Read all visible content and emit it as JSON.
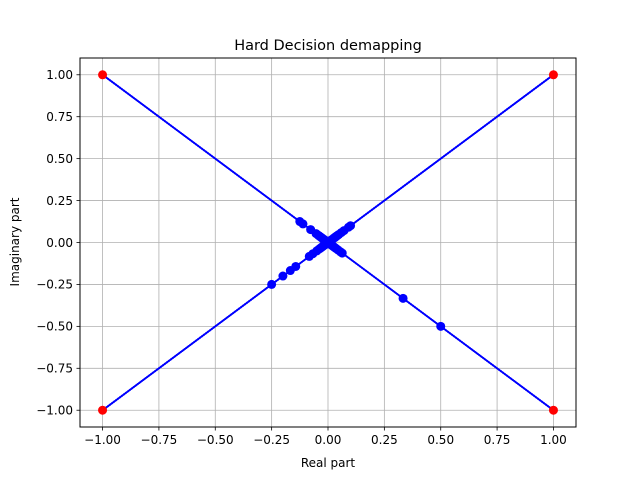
{
  "chart_data": {
    "type": "scatter",
    "title": "Hard Decision demapping",
    "xlabel": "Real part",
    "ylabel": "Imaginary part",
    "xlim": [
      -1.1,
      1.1
    ],
    "ylim": [
      -1.1,
      1.1
    ],
    "grid": true,
    "x_ticks": [
      -1.0,
      -0.75,
      -0.5,
      -0.25,
      0.0,
      0.25,
      0.5,
      0.75,
      1.0
    ],
    "y_ticks": [
      -1.0,
      -0.75,
      -0.5,
      -0.25,
      0.0,
      0.25,
      0.5,
      0.75,
      1.0
    ],
    "x_tick_labels": [
      "−1.00",
      "−0.75",
      "−0.50",
      "−0.25",
      "0.00",
      "0.25",
      "0.50",
      "0.75",
      "1.00"
    ],
    "y_tick_labels": [
      "−1.00",
      "−0.75",
      "−0.50",
      "−0.25",
      "0.00",
      "0.25",
      "0.50",
      "0.75",
      "1.00"
    ],
    "series": [
      {
        "color": "#0000ff",
        "marker": "circle",
        "lines_to_nearest_corner": true,
        "points": [
          [
            0.5,
            -0.5
          ],
          [
            0.333,
            -0.333
          ],
          [
            -0.25,
            -0.25
          ],
          [
            -0.2,
            -0.2
          ],
          [
            -0.167,
            -0.167
          ],
          [
            -0.143,
            -0.143
          ],
          [
            -0.125,
            0.125
          ],
          [
            -0.111,
            0.111
          ],
          [
            0.1,
            0.1
          ],
          [
            0.091,
            0.091
          ],
          [
            -0.083,
            -0.083
          ],
          [
            -0.077,
            0.077
          ],
          [
            0.071,
            0.071
          ],
          [
            -0.067,
            -0.067
          ],
          [
            0.063,
            -0.063
          ],
          [
            0.059,
            0.059
          ],
          [
            0.056,
            -0.056
          ],
          [
            -0.053,
            0.053
          ],
          [
            -0.05,
            -0.05
          ],
          [
            0.048,
            0.048
          ],
          [
            0.045,
            -0.045
          ],
          [
            -0.043,
            0.043
          ],
          [
            0.042,
            0.042
          ],
          [
            -0.04,
            -0.04
          ],
          [
            0.038,
            0.038
          ],
          [
            -0.037,
            0.037
          ],
          [
            0.036,
            -0.036
          ],
          [
            0.034,
            0.034
          ],
          [
            -0.033,
            -0.033
          ],
          [
            0.032,
            0.032
          ],
          [
            -0.031,
            0.031
          ],
          [
            0.03,
            -0.03
          ],
          [
            0.029,
            0.029
          ],
          [
            -0.028,
            -0.028
          ],
          [
            0.027,
            0.027
          ],
          [
            -0.026,
            0.026
          ],
          [
            0.025,
            -0.025
          ],
          [
            -0.024,
            -0.024
          ],
          [
            0.023,
            0.023
          ],
          [
            -0.022,
            0.022
          ],
          [
            0.021,
            -0.021
          ],
          [
            -0.02,
            -0.02
          ],
          [
            0.019,
            0.019
          ],
          [
            -0.018,
            0.018
          ],
          [
            0.017,
            -0.017
          ],
          [
            -0.016,
            -0.016
          ],
          [
            0.015,
            0.015
          ],
          [
            -0.014,
            0.014
          ],
          [
            0.013,
            -0.013
          ],
          [
            -0.012,
            -0.012
          ],
          [
            0.011,
            0.011
          ],
          [
            -0.01,
            0.01
          ],
          [
            0.009,
            -0.009
          ],
          [
            -0.008,
            -0.008
          ],
          [
            0.007,
            0.007
          ],
          [
            -0.006,
            0.006
          ],
          [
            0.005,
            -0.005
          ],
          [
            -0.004,
            -0.004
          ],
          [
            0.003,
            0.003
          ],
          [
            -0.002,
            0.002
          ]
        ]
      },
      {
        "color": "#ff0000",
        "marker": "circle",
        "points": [
          [
            -1,
            1
          ],
          [
            1,
            1
          ],
          [
            -1,
            -1
          ],
          [
            1,
            -1
          ]
        ]
      }
    ]
  }
}
